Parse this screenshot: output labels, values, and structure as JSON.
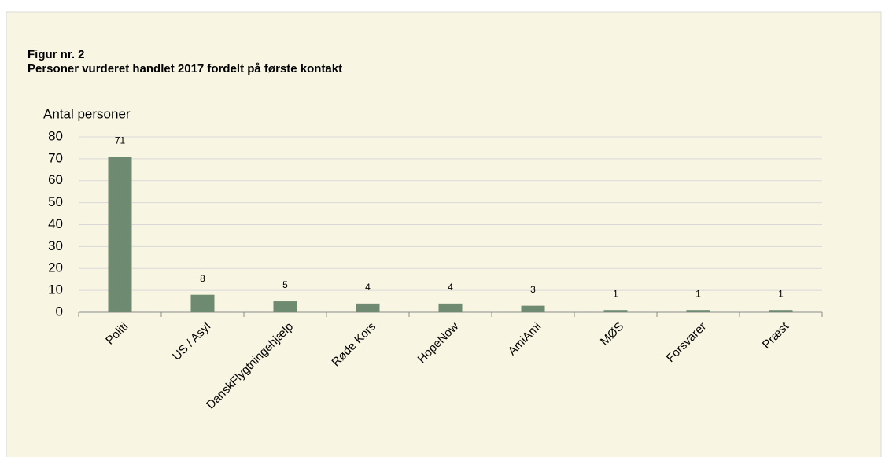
{
  "chart_data": {
    "type": "bar",
    "title": "Figur nr. 2",
    "subtitle": "Personer vurderet handlet 2017 fordelt på første kontakt",
    "y_label": "Antal personer",
    "categories": [
      "Politi",
      "US / Asyl",
      "DanskFlygtningehjælp",
      "Røde Kors",
      "HopeNow",
      "AmiAmi",
      "MØS",
      "Forsvarer",
      "Præst"
    ],
    "values": [
      71,
      8,
      5,
      4,
      4,
      3,
      1,
      1,
      1
    ],
    "color": "#6e8a70",
    "ylim": [
      0,
      80
    ],
    "yticks": [
      0,
      10,
      20,
      30,
      40,
      50,
      60,
      70,
      80
    ],
    "grid": true
  }
}
